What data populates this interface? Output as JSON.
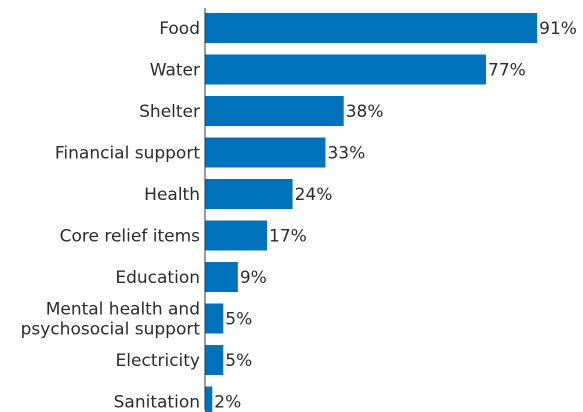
{
  "chart_data": {
    "type": "bar",
    "orientation": "horizontal",
    "categories": [
      "Food",
      "Water",
      "Shelter",
      "Financial support",
      "Health",
      "Core relief items",
      "Education",
      "Mental health and\npsychosocial support",
      "Electricity",
      "Sanitation"
    ],
    "values": [
      91,
      77,
      38,
      33,
      24,
      17,
      9,
      5,
      5,
      2
    ],
    "value_labels": [
      "91%",
      "77%",
      "38%",
      "33%",
      "24%",
      "17%",
      "9%",
      "5%",
      "5%",
      "2%"
    ],
    "unit": "%",
    "xlim": [
      0,
      100
    ],
    "grid": false,
    "legend": "none",
    "colors": {
      "bar": "#0072bc",
      "axis": "#333333",
      "text": "#2b2b2b"
    }
  }
}
